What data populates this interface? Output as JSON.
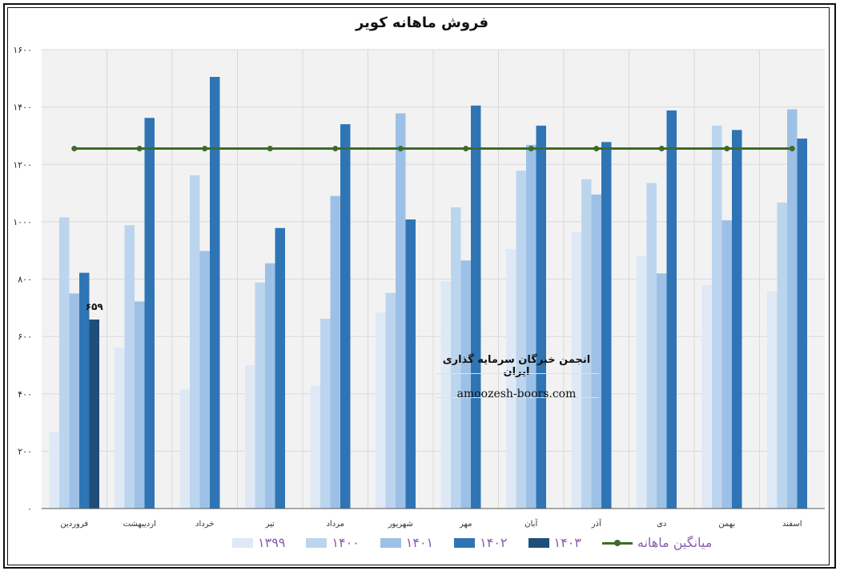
{
  "chart_data": {
    "type": "bar",
    "title": "فروش ماهانه کویر",
    "categories": [
      "فروردین",
      "اردیبهشت",
      "خرداد",
      "تیر",
      "مرداد",
      "شهریور",
      "مهر",
      "آبان",
      "آذر",
      "دی",
      "بهمن",
      "اسفند"
    ],
    "ylim": [
      0,
      1600
    ],
    "yticks": [
      "۰",
      "۲۰۰",
      "۴۰۰",
      "۶۰۰",
      "۸۰۰",
      "۱۰۰۰",
      "۱۲۰۰",
      "۱۴۰۰",
      "۱۶۰۰"
    ],
    "grid": true,
    "legend_position": "bottom",
    "series": [
      {
        "name": "۱۳۹۹",
        "color": "#dfe9f6",
        "values": [
          268,
          562,
          415,
          500,
          428,
          683,
          793,
          905,
          963,
          880,
          778,
          758
        ]
      },
      {
        "name": "۱۴۰۰",
        "color": "#bcd5ee",
        "values": [
          1015,
          988,
          1162,
          788,
          662,
          752,
          1050,
          1178,
          1148,
          1135,
          1335,
          1067
        ]
      },
      {
        "name": "۱۴۰۱",
        "color": "#9dc1e6",
        "values": [
          750,
          722,
          898,
          855,
          1090,
          1378,
          865,
          1268,
          1095,
          820,
          1005,
          1392
        ]
      },
      {
        "name": "۱۴۰۲",
        "color": "#2f75b5",
        "values": [
          822,
          1362,
          1505,
          978,
          1340,
          1008,
          1405,
          1335,
          1278,
          1388,
          1320,
          1290
        ]
      },
      {
        "name": "۱۴۰۳",
        "color": "#1f4e79",
        "values": [
          659,
          null,
          null,
          null,
          null,
          null,
          null,
          null,
          null,
          null,
          null,
          null
        ]
      }
    ],
    "average_line": {
      "name": "میانگین ماهانه",
      "color": "#3e6b2a",
      "value": 1255
    },
    "data_labels": [
      {
        "series": "۱۴۰۳",
        "category": "فروردین",
        "text": "۶۵۹"
      }
    ]
  },
  "watermark": {
    "line1": "انجمن خبرگان سرمایه گذاری ایران",
    "line2": "amoozesh-boors.com"
  }
}
